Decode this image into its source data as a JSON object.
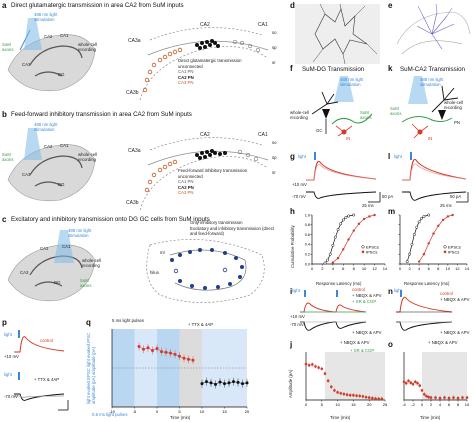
{
  "panels": {
    "a": {
      "letter": "a",
      "title": "Direct glutamatergic transmission in area CA2 from SuM inputs"
    },
    "b": {
      "letter": "b",
      "title": "Feed-forward inhibitory transmission in area CA2 from SuM inputs"
    },
    "c": {
      "letter": "c",
      "title": "Excitatory and inhibitory transmission onto DG GC cells from SuM inputs"
    },
    "d": {
      "letter": "d"
    },
    "e": {
      "letter": "e"
    },
    "f": {
      "letter": "f",
      "title": "SuM-DG Transmission"
    },
    "g": {
      "letter": "g"
    },
    "h": {
      "letter": "h"
    },
    "i": {
      "letter": "i"
    },
    "j": {
      "letter": "j"
    },
    "k": {
      "letter": "k",
      "title": "SuM-CA2 Transmission"
    },
    "l": {
      "letter": "l"
    },
    "m": {
      "letter": "m"
    },
    "n": {
      "letter": "n"
    },
    "o": {
      "letter": "o"
    },
    "p": {
      "letter": "p"
    },
    "q": {
      "letter": "q"
    }
  },
  "anatomy": {
    "light_stim": "488 nm light stimulation",
    "recording": "whole-cell recording",
    "sum_axons": "SuM axons",
    "regions": {
      "ca2": "CA2",
      "ca1": "CA1",
      "ca3": "CA3",
      "dg": "DG",
      "ca3a": "CA3a",
      "ca3b": "CA3b",
      "so": "so",
      "sp": "sp",
      "sr": "sr",
      "hilus": "hilus",
      "ml": "ml",
      "gc": "GC",
      "in": "IN",
      "pn": "PN"
    },
    "legend_a": [
      "Direct glutamatergic transmission",
      "unconnected",
      "CA1 PN",
      "CA2 PN",
      "CA3 PN"
    ],
    "legend_b": [
      "Feed-forward inhibitory transmission",
      "unconnected",
      "CA1 PN",
      "CA2 PN",
      "CA3 PN"
    ],
    "legend_c": [
      "Only inhibitory transmission",
      "Excitatory and inhibitory transmission (direct and feed-forward)"
    ]
  },
  "traces": {
    "light": "light",
    "v_plus10": "+10 mV",
    "v_minus70": "-70 mV",
    "scale_50pA": "50 pA",
    "scale_25ms": "25 ms",
    "control": "control",
    "nbqx_apv": "+ NBQX & APV",
    "sr_cgp": "+ SR & CGP",
    "ttx_4ap": "+ TTX & 4AP",
    "scale_20pA": "20 pA",
    "pulses": "5 ms light pulses",
    "pulses_rate": "0.5 ms light pulses"
  },
  "cdf": {
    "xlabel": "Response Latency (ms)",
    "ylabel": "Cumulative Probability",
    "series_names": [
      "EPSCs",
      "IPSCs"
    ],
    "xticks": [
      "0",
      "2",
      "4",
      "6",
      "8",
      "10",
      "12",
      "14"
    ],
    "yticks": [
      "0.0",
      "0.2",
      "0.4",
      "0.6",
      "0.8",
      "1.0"
    ]
  },
  "timecourse": {
    "xlabel": "Time (min)",
    "ylabel_j": "Amplitude (pA)",
    "ylabel_o": "Amplitude (pA)",
    "ylabel_q": "light evoked EPSC light evoked IPSC amplitude (pA) amplitude (pA)",
    "j_labels": [
      "+ NBQX & APV",
      "+ SR & CGP"
    ],
    "o_label": "+ NBQX & APV",
    "q_label": "+ TTX & 4AP",
    "j_xticks": [
      "0",
      "5",
      "10",
      "15",
      "20",
      "25"
    ],
    "o_xticks": [
      "-4",
      "-2",
      "0",
      "2",
      "4",
      "6",
      "8",
      "10"
    ],
    "q_xticks": [
      "-10",
      "-5",
      "0",
      "5",
      "10",
      "15",
      "20"
    ]
  },
  "chart_data": [
    {
      "type": "line",
      "panel": "h",
      "xlabel": "Response Latency (ms)",
      "ylabel": "Cumulative Probability",
      "xlim": [
        0,
        14
      ],
      "ylim": [
        0,
        1
      ],
      "series": [
        {
          "name": "EPSCs",
          "x": [
            2.5,
            3,
            3.5,
            4,
            4.5,
            5,
            5.5,
            6,
            6.5,
            7,
            8
          ],
          "values": [
            0.02,
            0.08,
            0.2,
            0.38,
            0.55,
            0.7,
            0.82,
            0.9,
            0.95,
            0.98,
            1.0
          ]
        },
        {
          "name": "IPSCs",
          "x": [
            4,
            5,
            6,
            7,
            8,
            9,
            10,
            11,
            12
          ],
          "values": [
            0.03,
            0.12,
            0.3,
            0.5,
            0.68,
            0.82,
            0.92,
            0.97,
            1.0
          ]
        }
      ]
    },
    {
      "type": "line",
      "panel": "m",
      "xlabel": "Response Latency (ms)",
      "ylabel": "Cumulative Probability",
      "xlim": [
        0,
        14
      ],
      "ylim": [
        0,
        1
      ],
      "series": [
        {
          "name": "EPSCs",
          "x": [
            1.5,
            2,
            2.5,
            3,
            3.5,
            4,
            4.5,
            5,
            6
          ],
          "values": [
            0.05,
            0.2,
            0.4,
            0.6,
            0.75,
            0.86,
            0.93,
            0.97,
            1.0
          ]
        },
        {
          "name": "IPSCs",
          "x": [
            4,
            5,
            6,
            7,
            8,
            9,
            10,
            11
          ],
          "values": [
            0.05,
            0.2,
            0.42,
            0.62,
            0.78,
            0.9,
            0.97,
            1.0
          ]
        }
      ]
    },
    {
      "type": "scatter",
      "panel": "j",
      "xlabel": "Time (min)",
      "ylabel": "Amplitude (pA)",
      "xlim": [
        0,
        25
      ],
      "ylim": [
        0,
        200
      ],
      "series": [
        {
          "name": "Amplitude",
          "x": [
            0,
            1,
            2,
            3,
            4,
            5,
            6,
            7,
            8,
            9,
            10,
            11,
            12,
            13,
            14,
            15,
            16,
            17,
            18,
            19,
            20,
            21,
            22,
            23,
            24
          ],
          "values": [
            150,
            145,
            148,
            140,
            135,
            130,
            110,
            80,
            55,
            40,
            32,
            28,
            25,
            22,
            20,
            20,
            18,
            17,
            15,
            12,
            10,
            8,
            6,
            5,
            5
          ]
        }
      ]
    },
    {
      "type": "scatter",
      "panel": "o",
      "xlabel": "Time (min)",
      "ylabel": "Amplitude (pA)",
      "xlim": [
        -4,
        10
      ],
      "ylim": [
        0,
        100
      ],
      "series": [
        {
          "name": "Amplitude",
          "x": [
            -4,
            -3.5,
            -3,
            -2.5,
            -2,
            -1.5,
            -1,
            -0.5,
            0,
            0.5,
            1,
            1.5,
            2,
            3,
            4,
            5,
            6,
            7,
            8,
            9,
            10
          ],
          "values": [
            38,
            35,
            40,
            36,
            33,
            38,
            35,
            30,
            20,
            12,
            8,
            6,
            5,
            5,
            4,
            5,
            4,
            5,
            4,
            5,
            5
          ]
        }
      ]
    },
    {
      "type": "scatter",
      "panel": "q",
      "xlabel": "Time (min)",
      "ylabel": "amplitude (pA)",
      "xlim": [
        -10,
        20
      ],
      "ylim": [
        -100,
        100
      ],
      "series": [
        {
          "name": "IPSC",
          "x": [
            -4,
            -3,
            -2,
            -1,
            0,
            1,
            2,
            3,
            4,
            5,
            6,
            7,
            8
          ],
          "values": [
            55,
            48,
            52,
            45,
            50,
            42,
            40,
            38,
            35,
            30,
            25,
            22,
            20
          ]
        },
        {
          "name": "EPSC",
          "x": [
            10,
            11,
            12,
            13,
            14,
            15,
            16,
            17,
            18,
            19,
            20
          ],
          "values": [
            -40,
            -35,
            -38,
            -42,
            -36,
            -40,
            -38,
            -35,
            -37,
            -40,
            -38
          ]
        }
      ]
    }
  ]
}
